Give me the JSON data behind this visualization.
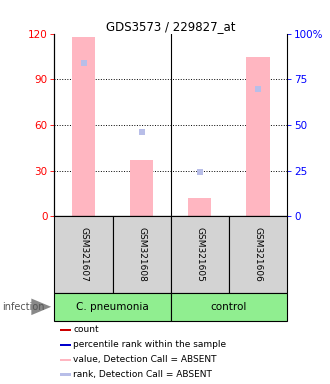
{
  "title": "GDS3573 / 229827_at",
  "samples": [
    "GSM321607",
    "GSM321608",
    "GSM321605",
    "GSM321606"
  ],
  "bar_values_absent": [
    118,
    37,
    12,
    105
  ],
  "rank_values_absent": [
    84,
    46,
    24,
    70
  ],
  "left_ylim": [
    0,
    120
  ],
  "right_ylim": [
    0,
    100
  ],
  "left_yticks": [
    0,
    30,
    60,
    90,
    120
  ],
  "right_yticks": [
    0,
    25,
    50,
    75,
    100
  ],
  "right_yticklabels": [
    "0",
    "25",
    "50",
    "75",
    "100%"
  ],
  "bar_color_absent": "#ffb6c1",
  "rank_color_absent": "#b8bee8",
  "sample_box_color": "#d3d3d3",
  "green_color": "#90ee90",
  "infection_label": "infection",
  "legend_items": [
    {
      "label": "count",
      "color": "#cc0000"
    },
    {
      "label": "percentile rank within the sample",
      "color": "#0000cc"
    },
    {
      "label": "value, Detection Call = ABSENT",
      "color": "#ffb6c1"
    },
    {
      "label": "rank, Detection Call = ABSENT",
      "color": "#b8bee8"
    }
  ],
  "group_ranges": [
    [
      0,
      2,
      "C. pneumonia"
    ],
    [
      2,
      4,
      "control"
    ]
  ]
}
